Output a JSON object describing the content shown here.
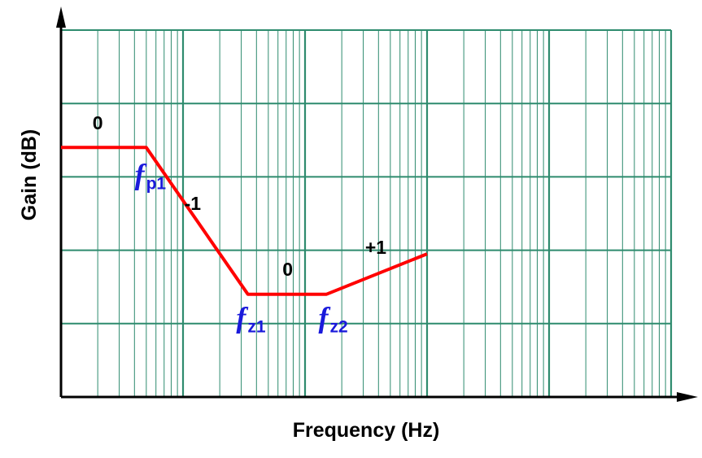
{
  "chart_data": {
    "type": "line",
    "title": "",
    "xlabel": "Frequency (Hz)",
    "ylabel": "Gain (dB)",
    "x_scale": "log",
    "x_decades": 5,
    "y_divisions": 5,
    "grid": true,
    "colors": {
      "grid": "#2e8b6e",
      "line": "#ff0000",
      "freq_labels": "#1a1adb",
      "axes": "#000000"
    },
    "series": [
      {
        "x": [
          1,
          5,
          34,
          150,
          1000
        ],
        "y": [
          3.4,
          3.4,
          1.4,
          1.4,
          1.95
        ]
      }
    ],
    "slope_labels": [
      {
        "text": "0",
        "x": 2.0,
        "y": 3.65
      },
      {
        "text": "-1",
        "x": 12.0,
        "y": 2.55
      },
      {
        "text": "0",
        "x": 72.0,
        "y": 1.65
      },
      {
        "text": "+1",
        "x": 380.0,
        "y": 1.95
      }
    ],
    "freq_labels": [
      {
        "main": "f",
        "sub": "p1",
        "x": 5.4,
        "y": 2.9
      },
      {
        "main": "f",
        "sub": "z1",
        "x": 36.0,
        "y": 0.95
      },
      {
        "main": "f",
        "sub": "z2",
        "x": 170.0,
        "y": 0.95
      }
    ]
  }
}
